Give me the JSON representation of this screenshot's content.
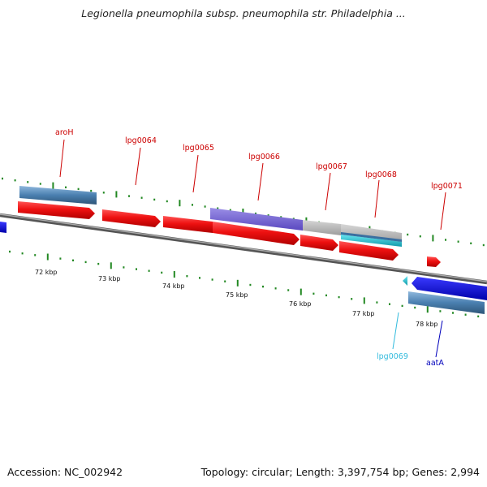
{
  "title": "Legionella pneumophila subsp. pneumophila str. Philadelphia ...",
  "footer": {
    "accession_label": "Accession: NC_002942",
    "summary": "Topology: circular; Length: 3,397,754 bp; Genes: 2,994"
  },
  "ruler": {
    "labels": [
      "72 kbp",
      "73 kbp",
      "74 kbp",
      "75 kbp",
      "76 kbp",
      "77 kbp",
      "78 kbp"
    ]
  },
  "genes": [
    {
      "name": "aroH",
      "color": "#cc0000"
    },
    {
      "name": "lpg0064",
      "color": "#cc0000"
    },
    {
      "name": "lpg0065",
      "color": "#cc0000"
    },
    {
      "name": "lpg0066",
      "color": "#cc0000"
    },
    {
      "name": "lpg0067",
      "color": "#cc0000"
    },
    {
      "name": "lpg0068",
      "color": "#cc0000"
    },
    {
      "name": "lpg0071",
      "color": "#cc0000"
    },
    {
      "name": "lpg0069",
      "color": "#33bbdd"
    },
    {
      "name": "aatA",
      "color": "#0000bb"
    }
  ],
  "colors": {
    "cds": "#ee1111",
    "gene_bar": "#4a7fb0",
    "misc_feature": "#6655cc",
    "grey_feature": "#b0b0b0",
    "cyan_feature": "#22ccdd",
    "blue_cds": "#0000ee",
    "tick": "#228822",
    "backbone": "#777777"
  }
}
